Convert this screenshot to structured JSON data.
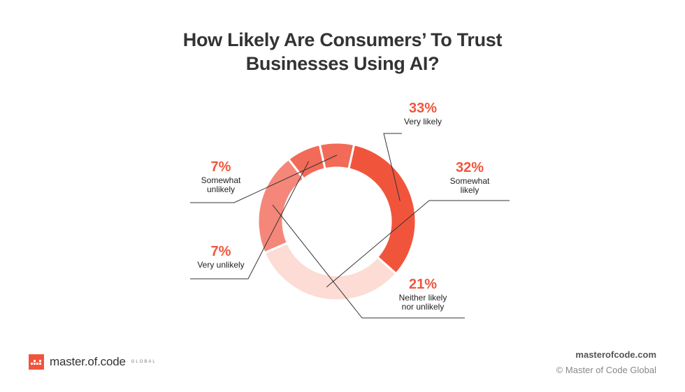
{
  "title": {
    "line1": "How Likely Are Consumers’ To Trust",
    "line2": "Businesses Using AI?"
  },
  "chart_data": {
    "type": "pie",
    "categories": [
      "Very likely",
      "Somewhat likely",
      "Neither likely nor unlikely",
      "Very unlikely",
      "Somewhat unlikely"
    ],
    "values": [
      33,
      32,
      21,
      7,
      7
    ],
    "percent_labels": [
      "33%",
      "32%",
      "21%",
      "7%",
      "7%"
    ],
    "label_lines": [
      [
        "Very likely"
      ],
      [
        "Somewhat",
        "likely"
      ],
      [
        "Neither likely",
        "nor unlikely"
      ],
      [
        "Very unlikely"
      ],
      [
        "Somewhat",
        "unlikely"
      ]
    ],
    "colors": [
      "#f0553c",
      "#fcdcd4",
      "#f4877a",
      "#f26a58",
      "#f26a58"
    ],
    "donut": true
  },
  "brand": {
    "logo_text": "master.of.code",
    "logo_sub": "GLOBAL",
    "logo_color": "#f0553c"
  },
  "footer": {
    "site": "masterofcode.com",
    "copyright": "© Master of Code Global"
  }
}
